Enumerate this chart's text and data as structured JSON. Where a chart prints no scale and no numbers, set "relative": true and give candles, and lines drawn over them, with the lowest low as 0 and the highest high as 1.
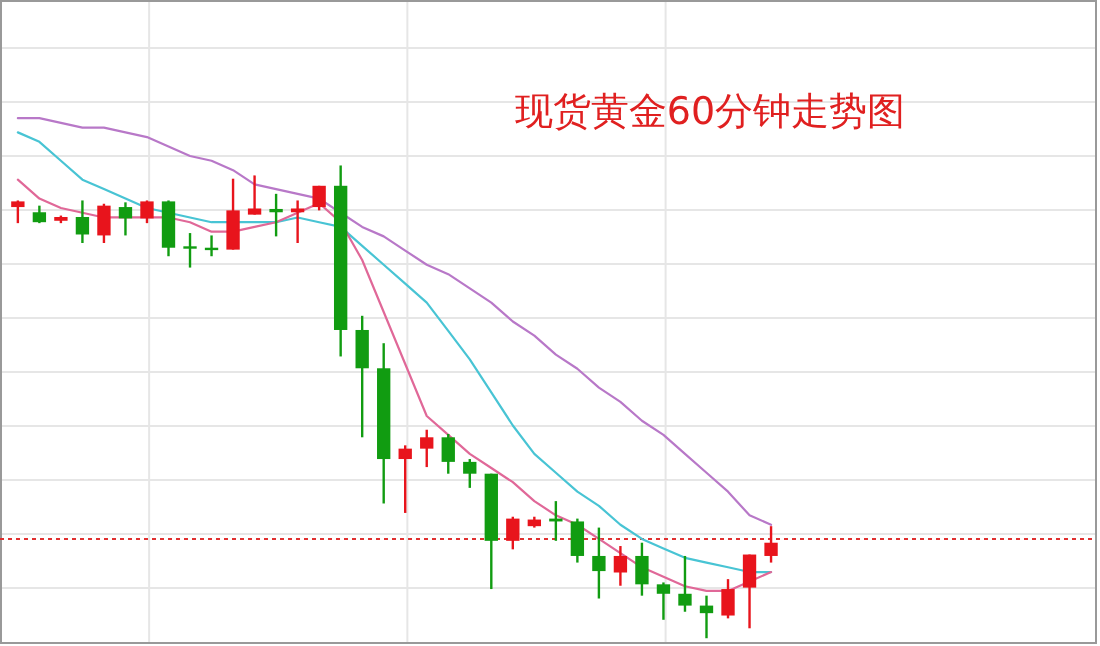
{
  "chart_data": {
    "type": "candlestick",
    "title": "现货黄金60分钟走势图",
    "relative": true,
    "grid": true,
    "categories": [
      null,
      null,
      null,
      null,
      null,
      null,
      null,
      null,
      null,
      null,
      null,
      null,
      null,
      null,
      null,
      null,
      null,
      null,
      null,
      null,
      null,
      null,
      null,
      null,
      null,
      null,
      null,
      null,
      null,
      null,
      null,
      null,
      null,
      null,
      null,
      null
    ],
    "ohlc": [
      [
        0.912,
        0.926,
        0.878,
        0.924
      ],
      [
        0.901,
        0.915,
        0.878,
        0.88
      ],
      [
        0.883,
        0.894,
        0.878,
        0.891
      ],
      [
        0.891,
        0.926,
        0.836,
        0.854
      ],
      [
        0.852,
        0.919,
        0.836,
        0.915
      ],
      [
        0.912,
        0.922,
        0.852,
        0.888
      ],
      [
        0.888,
        0.926,
        0.878,
        0.924
      ],
      [
        0.924,
        0.926,
        0.808,
        0.826
      ],
      [
        0.829,
        0.857,
        0.784,
        0.824
      ],
      [
        0.826,
        0.852,
        0.808,
        0.822
      ],
      [
        0.822,
        0.972,
        0.822,
        0.905
      ],
      [
        0.896,
        0.979,
        0.896,
        0.909
      ],
      [
        0.908,
        0.94,
        0.85,
        0.901
      ],
      [
        0.901,
        0.926,
        0.836,
        0.909
      ],
      [
        0.912,
        0.957,
        0.905,
        0.957
      ],
      [
        0.957,
        1.0,
        0.596,
        0.652
      ],
      [
        0.652,
        0.682,
        0.425,
        0.571
      ],
      [
        0.571,
        0.624,
        0.285,
        0.379
      ],
      [
        0.379,
        0.408,
        0.265,
        0.401
      ],
      [
        0.401,
        0.441,
        0.362,
        0.425
      ],
      [
        0.425,
        0.432,
        0.348,
        0.373
      ],
      [
        0.373,
        0.379,
        0.318,
        0.348
      ],
      [
        0.348,
        0.348,
        0.104,
        0.206
      ],
      [
        0.206,
        0.257,
        0.188,
        0.253
      ],
      [
        0.237,
        0.257,
        0.234,
        0.251
      ],
      [
        0.253,
        0.29,
        0.206,
        0.247
      ],
      [
        0.247,
        0.253,
        0.16,
        0.174
      ],
      [
        0.174,
        0.234,
        0.084,
        0.142
      ],
      [
        0.139,
        0.195,
        0.111,
        0.174
      ],
      [
        0.174,
        0.202,
        0.09,
        0.114
      ],
      [
        0.114,
        0.118,
        0.039,
        0.094
      ],
      [
        0.094,
        0.174,
        0.056,
        0.069
      ],
      [
        0.069,
        0.09,
        0.0,
        0.053
      ],
      [
        0.048,
        0.125,
        0.042,
        0.104
      ],
      [
        0.107,
        0.177,
        0.021,
        0.177
      ],
      [
        0.174,
        0.237,
        0.16,
        0.202
      ]
    ],
    "colors": [
      "#e8141c",
      "#119c11",
      "#e8141c",
      "#119c11",
      "#e8141c",
      "#119c11",
      "#e8141c",
      "#119c11",
      "#119c11",
      "#119c11",
      "#e8141c",
      "#e8141c",
      "#119c11",
      "#e8141c",
      "#e8141c",
      "#119c11",
      "#119c11",
      "#119c11",
      "#e8141c",
      "#e8141c",
      "#119c11",
      "#119c11",
      "#119c11",
      "#e8141c",
      "#e8141c",
      "#119c11",
      "#119c11",
      "#119c11",
      "#e8141c",
      "#119c11",
      "#119c11",
      "#119c11",
      "#119c11",
      "#e8141c",
      "#e8141c",
      "#e8141c"
    ],
    "series": [
      {
        "type": "line",
        "color": "#b878c8",
        "values": [
          1.1,
          1.1,
          1.09,
          1.08,
          1.08,
          1.07,
          1.06,
          1.04,
          1.02,
          1.01,
          0.99,
          0.96,
          0.95,
          0.94,
          0.93,
          0.9,
          0.87,
          0.85,
          0.82,
          0.79,
          0.77,
          0.74,
          0.71,
          0.67,
          0.64,
          0.6,
          0.57,
          0.53,
          0.5,
          0.46,
          0.43,
          0.39,
          0.35,
          0.31,
          0.26,
          0.24
        ]
      },
      {
        "type": "line",
        "color": "#48c4d4",
        "values": [
          1.07,
          1.05,
          1.01,
          0.97,
          0.95,
          0.93,
          0.91,
          0.9,
          0.89,
          0.88,
          0.88,
          0.88,
          0.88,
          0.89,
          0.88,
          0.87,
          0.83,
          0.79,
          0.75,
          0.71,
          0.65,
          0.59,
          0.52,
          0.45,
          0.39,
          0.35,
          0.31,
          0.28,
          0.24,
          0.21,
          0.19,
          0.17,
          0.16,
          0.15,
          0.14,
          0.14
        ]
      },
      {
        "type": "line",
        "color": "#e06898",
        "values": [
          0.97,
          0.93,
          0.91,
          0.9,
          0.89,
          0.89,
          0.89,
          0.89,
          0.88,
          0.86,
          0.86,
          0.87,
          0.88,
          0.9,
          0.92,
          0.88,
          0.8,
          0.69,
          0.58,
          0.47,
          0.43,
          0.39,
          0.36,
          0.33,
          0.29,
          0.26,
          0.24,
          0.21,
          0.18,
          0.15,
          0.13,
          0.11,
          0.1,
          0.1,
          0.12,
          0.14
        ]
      }
    ],
    "ref_lines": [
      {
        "axis": "y",
        "value": 0.21,
        "color": "#e03030",
        "line_style": "dotted"
      }
    ]
  }
}
